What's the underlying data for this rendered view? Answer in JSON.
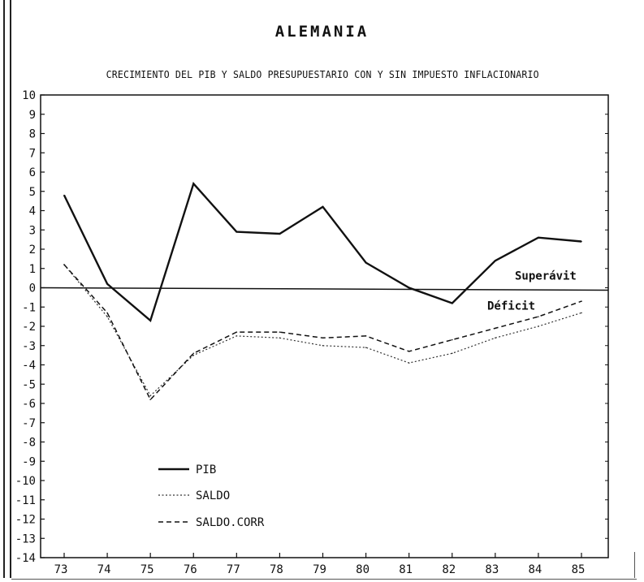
{
  "title": "ALEMANIA",
  "subtitle": "CRECIMIENTO DEL PIB Y SALDO PRESUPUESTARIO CON Y SIN IMPUESTO INFLACIONARIO",
  "chart_data": {
    "type": "line",
    "x": [
      "73",
      "74",
      "75",
      "76",
      "77",
      "78",
      "79",
      "80",
      "81",
      "82",
      "83",
      "84",
      "85"
    ],
    "ylim": [
      -14,
      10
    ],
    "y_ticks": [
      "10",
      "9",
      "8",
      "7",
      "6",
      "5",
      "4",
      "3",
      "2",
      "1",
      "0",
      "-1",
      "-2",
      "-3",
      "-4",
      "-5",
      "-6",
      "-7",
      "-8",
      "-9",
      "-10",
      "-11",
      "-12",
      "-13",
      "-14"
    ],
    "grid": false,
    "legend_position": "bottom-left",
    "series": [
      {
        "name": "PIB",
        "style": "solid",
        "color": "#111111",
        "values": [
          4.8,
          0.2,
          -1.7,
          5.4,
          2.9,
          2.8,
          4.2,
          1.3,
          0.0,
          -0.8,
          1.4,
          2.6,
          2.4
        ]
      },
      {
        "name": "SALDO",
        "style": "dotted",
        "color": "#333333",
        "values": [
          1.2,
          -1.5,
          -5.6,
          -3.5,
          -2.5,
          -2.6,
          -3.0,
          -3.1,
          -3.9,
          -3.4,
          -2.6,
          -2.0,
          -1.3
        ]
      },
      {
        "name": "SALDO.CORR",
        "style": "dashed",
        "color": "#111111",
        "values": [
          1.2,
          -1.3,
          -5.8,
          -3.4,
          -2.3,
          -2.3,
          -2.6,
          -2.5,
          -3.3,
          -2.7,
          -2.1,
          -1.5,
          -0.7
        ]
      }
    ],
    "reference_line": {
      "value": 0
    },
    "annotations": {
      "above": "Superávit",
      "below": "Déficit"
    }
  }
}
